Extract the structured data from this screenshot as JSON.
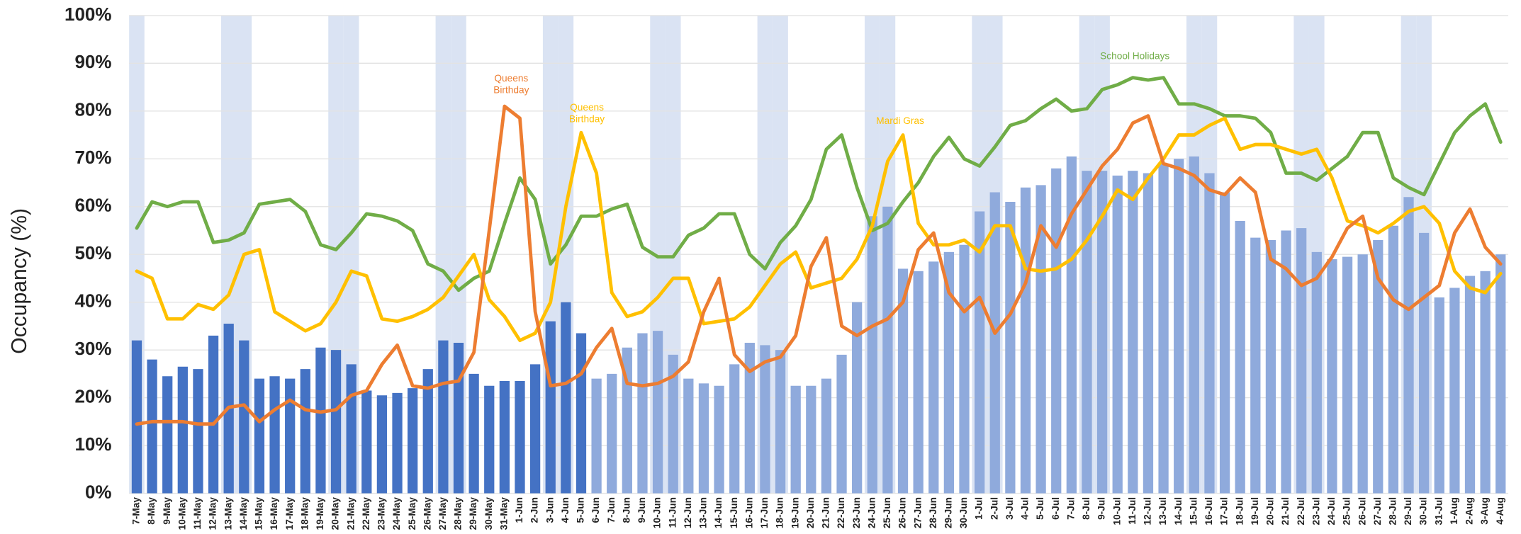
{
  "chart_data": {
    "type": "bar-line",
    "y_label": "Occupancy (%)",
    "ylim": [
      0,
      100
    ],
    "yticks": [
      {
        "value": 0,
        "label": "0%"
      },
      {
        "value": 10,
        "label": "10%"
      },
      {
        "value": 20,
        "label": "20%"
      },
      {
        "value": 30,
        "label": "30%"
      },
      {
        "value": 40,
        "label": "40%"
      },
      {
        "value": 50,
        "label": "50%"
      },
      {
        "value": 60,
        "label": "60%"
      },
      {
        "value": 70,
        "label": "70%"
      },
      {
        "value": 80,
        "label": "80%"
      },
      {
        "value": 90,
        "label": "90%"
      },
      {
        "value": 100,
        "label": "100%"
      }
    ],
    "grid": true,
    "categories": [
      "7-May",
      "8-May",
      "9-May",
      "10-May",
      "11-May",
      "12-May",
      "13-May",
      "14-May",
      "15-May",
      "16-May",
      "17-May",
      "18-May",
      "19-May",
      "20-May",
      "21-May",
      "22-May",
      "23-May",
      "24-May",
      "25-May",
      "26-May",
      "27-May",
      "28-May",
      "29-May",
      "30-May",
      "31-May",
      "1-Jun",
      "2-Jun",
      "3-Jun",
      "4-Jun",
      "5-Jun",
      "6-Jun",
      "7-Jun",
      "8-Jun",
      "9-Jun",
      "10-Jun",
      "11-Jun",
      "12-Jun",
      "13-Jun",
      "14-Jun",
      "15-Jun",
      "16-Jun",
      "17-Jun",
      "18-Jun",
      "19-Jun",
      "20-Jun",
      "21-Jun",
      "22-Jun",
      "23-Jun",
      "24-Jun",
      "25-Jun",
      "26-Jun",
      "27-Jun",
      "28-Jun",
      "29-Jun",
      "30-Jun",
      "1-Jul",
      "2-Jul",
      "3-Jul",
      "4-Jul",
      "5-Jul",
      "6-Jul",
      "7-Jul",
      "8-Jul",
      "9-Jul",
      "10-Jul",
      "11-Jul",
      "12-Jul",
      "13-Jul",
      "14-Jul",
      "15-Jul",
      "16-Jul",
      "17-Jul",
      "18-Jul",
      "19-Jul",
      "20-Jul",
      "21-Jul",
      "22-Jul",
      "23-Jul",
      "24-Jul",
      "25-Jul",
      "26-Jul",
      "27-Jul",
      "28-Jul",
      "29-Jul",
      "30-Jul",
      "31-Jul",
      "1-Aug",
      "2-Aug",
      "3-Aug",
      "4-Aug"
    ],
    "shaded": [
      "7-May",
      "13-May",
      "14-May",
      "20-May",
      "21-May",
      "27-May",
      "28-May",
      "3-Jun",
      "4-Jun",
      "10-Jun",
      "11-Jun",
      "17-Jun",
      "18-Jun",
      "24-Jun",
      "25-Jun",
      "1-Jul",
      "2-Jul",
      "8-Jul",
      "9-Jul",
      "15-Jul",
      "16-Jul",
      "22-Jul",
      "23-Jul",
      "29-Jul",
      "30-Jul"
    ],
    "shade_color": "#dae3f3",
    "series": [
      {
        "type": "bar",
        "color": "#4472c4",
        "values": [
          32,
          28,
          24.5,
          26.5,
          26,
          33,
          35.5,
          32,
          24,
          24.5,
          24,
          26,
          30.5,
          30,
          27,
          21.5,
          20.5,
          21,
          22,
          26,
          32,
          31.5,
          25,
          22.5,
          23.5,
          23.5,
          27,
          36,
          40,
          33.5,
          null,
          null,
          null,
          null,
          null,
          null,
          null,
          null,
          null,
          null,
          null,
          null,
          null,
          null,
          null,
          null,
          null,
          null,
          null,
          null,
          null,
          null,
          null,
          null,
          null,
          null,
          null,
          null,
          null,
          null,
          null,
          null,
          null,
          null,
          null,
          null,
          null,
          null,
          null,
          null,
          null,
          null,
          null,
          null,
          null,
          null,
          null,
          null,
          null,
          null,
          null,
          null,
          null,
          null,
          null,
          null,
          null,
          null,
          null,
          null
        ]
      },
      {
        "type": "bar",
        "color": "#8faadc",
        "values": [
          null,
          null,
          null,
          null,
          null,
          null,
          null,
          null,
          null,
          null,
          null,
          null,
          null,
          null,
          null,
          null,
          null,
          null,
          null,
          null,
          null,
          null,
          null,
          null,
          null,
          null,
          null,
          null,
          null,
          null,
          24,
          25,
          30.5,
          33.5,
          34,
          29,
          24,
          23,
          22.5,
          27,
          31.5,
          31,
          30,
          22.5,
          22.5,
          24,
          29,
          40,
          58,
          60,
          47,
          46.5,
          48.5,
          50.5,
          52,
          59,
          63,
          61,
          64,
          64.5,
          68,
          70.5,
          67.5,
          67.5,
          66.5,
          67.5,
          67,
          69,
          70,
          70.5,
          67,
          63,
          57,
          53.5,
          53,
          55,
          55.5,
          50.5,
          49,
          49.5,
          50,
          53,
          56,
          62,
          54.5,
          41,
          43,
          45.5,
          46.5,
          50
        ]
      },
      {
        "type": "line",
        "color": "#70ad47",
        "values": [
          55.5,
          61,
          60,
          61,
          61,
          52.5,
          53,
          54.5,
          60.5,
          61,
          61.5,
          59,
          52,
          51,
          54.5,
          58.5,
          58,
          57,
          55,
          48,
          46.5,
          42.5,
          45,
          46.5,
          56.5,
          66,
          61.5,
          48,
          52,
          58,
          58,
          59.5,
          60.5,
          51.5,
          49.5,
          49.5,
          54,
          55.5,
          58.5,
          58.5,
          50,
          47,
          52.5,
          56,
          61.5,
          72,
          75,
          64,
          55,
          56.5,
          61,
          65,
          70.5,
          74.5,
          70,
          68.5,
          72.5,
          77,
          78,
          80.5,
          82.5,
          80,
          80.5,
          84.5,
          85.5,
          87,
          86.5,
          87,
          81.5,
          81.5,
          80.5,
          79,
          79,
          78.5,
          75.5,
          67,
          67,
          65.5,
          68,
          70.5,
          75.5,
          75.5,
          66,
          64,
          62.5,
          69,
          75.5,
          79,
          81.5,
          73.5
        ]
      },
      {
        "type": "line",
        "color": "#ffc000",
        "values": [
          46.5,
          45,
          36.5,
          36.5,
          39.5,
          38.5,
          41.5,
          50,
          51,
          38,
          36,
          34,
          35.5,
          40,
          46.5,
          45.5,
          36.5,
          36,
          37,
          38.5,
          41,
          45.5,
          50,
          40.5,
          37,
          32,
          33.5,
          40,
          60,
          75.5,
          67,
          42,
          37,
          38,
          41,
          45,
          45,
          35.5,
          36,
          36.5,
          39,
          43.5,
          48,
          50.5,
          43,
          44,
          45,
          49,
          56,
          69.5,
          75,
          56.5,
          52,
          52,
          53,
          50.5,
          56,
          56,
          47,
          46.5,
          47,
          49,
          53,
          58,
          63.5,
          61.5,
          66,
          70,
          75,
          75,
          77,
          78.5,
          72,
          73,
          73,
          72,
          71,
          72,
          66,
          57,
          56,
          54.5,
          56.5,
          59,
          60,
          56.5,
          46.5,
          43,
          42,
          46
        ]
      },
      {
        "type": "line",
        "color": "#ed7d31",
        "values": [
          14.5,
          15,
          15,
          15,
          14.5,
          14.5,
          18,
          18.5,
          15,
          17.5,
          19.5,
          17.5,
          17,
          17.5,
          20.5,
          21.5,
          27,
          31,
          22.5,
          22,
          23,
          23.5,
          29.5,
          55,
          81,
          78.5,
          38,
          22.5,
          23,
          25,
          30.5,
          34.5,
          23,
          22.5,
          23,
          24.5,
          27.5,
          38,
          45,
          29,
          25.5,
          27.5,
          28.5,
          33,
          47.5,
          53.5,
          35,
          33,
          35,
          36.5,
          40,
          51,
          54.5,
          42,
          38,
          41,
          33.5,
          37.5,
          44,
          56,
          51.5,
          58.5,
          63.5,
          68.5,
          72,
          77.5,
          79,
          69,
          68,
          66.5,
          63.5,
          62.5,
          66,
          63,
          49,
          47,
          43.5,
          45,
          49.5,
          55.5,
          58,
          45,
          40.5,
          38.5,
          41,
          43.5,
          54.5,
          59.5,
          51.5,
          48
        ]
      }
    ],
    "annotations": [
      {
        "text": "Queens Birthday",
        "color": "#ed7d31"
      },
      {
        "text": "Queens Birthday",
        "color": "#ffc000"
      },
      {
        "text": "Mardi Gras",
        "color": "#ffc000"
      },
      {
        "text": "School Holidays",
        "color": "#70ad47"
      }
    ]
  }
}
